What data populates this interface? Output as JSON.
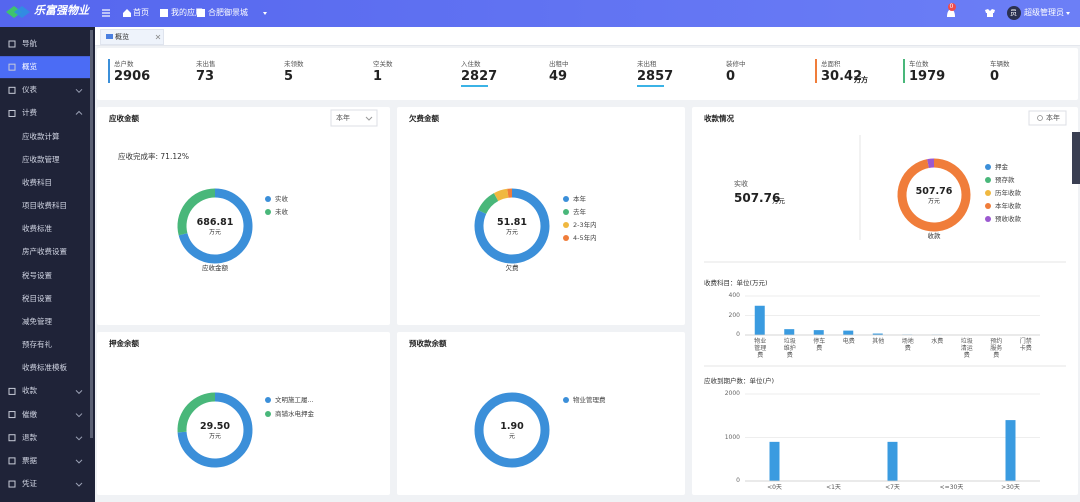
{
  "header": {
    "logo": "乐富强物业",
    "nav": [
      "首页",
      "我的应用",
      "合肥御景城"
    ],
    "badge": "0",
    "avatar": "员",
    "user": "超级管理员"
  },
  "sidebar": {
    "active": 1,
    "items": [
      {
        "label": "导航"
      },
      {
        "label": "概览"
      },
      {
        "label": "仪表",
        "expandable": true
      },
      {
        "label": "计费",
        "expandable": true
      },
      {
        "label": "应收款计算",
        "sub": true
      },
      {
        "label": "应收款管理",
        "sub": true
      },
      {
        "label": "收费科目",
        "sub": true
      },
      {
        "label": "项目收费科目",
        "sub": true
      },
      {
        "label": "收费标准",
        "sub": true
      },
      {
        "label": "房产收费设置",
        "sub": true
      },
      {
        "label": "税号设置",
        "sub": true
      },
      {
        "label": "税目设置",
        "sub": true
      },
      {
        "label": "减免管理",
        "sub": true
      },
      {
        "label": "预存有礼",
        "sub": true
      },
      {
        "label": "收费标准模板",
        "sub": true
      },
      {
        "label": "收款",
        "expandable": true
      },
      {
        "label": "催缴",
        "expandable": true
      },
      {
        "label": "退款",
        "expandable": true
      },
      {
        "label": "票据",
        "expandable": true
      },
      {
        "label": "凭证",
        "expandable": true
      }
    ]
  },
  "tab": "概览",
  "stats": [
    {
      "label": "总户数",
      "value": 2906,
      "bar": "left",
      "color": "#3b8fd9"
    },
    {
      "label": "未出售",
      "value": 73
    },
    {
      "label": "未领数",
      "value": 5
    },
    {
      "label": "空关数",
      "value": 1
    },
    {
      "label": "入住数",
      "value": 2827,
      "bar": "under",
      "color": "#3bb3e6"
    },
    {
      "label": "出租中",
      "value": 49
    },
    {
      "label": "未出租",
      "value": 2857,
      "bar": "under",
      "color": "#3bb3e6"
    },
    {
      "label": "装修中",
      "value": 0
    },
    {
      "label": "总面积",
      "value": 30.42,
      "unit": "万方",
      "bar": "left",
      "color": "#f07d3a"
    },
    {
      "label": "车位数",
      "value": 1979,
      "bar": "left",
      "color": "#49b77a"
    },
    {
      "label": "车辆数",
      "value": 0
    }
  ],
  "panels": {
    "receivable": {
      "title": "应收金额",
      "select": "本年",
      "rate": "应收完成率: 71.12%",
      "chart": {
        "type": "donut",
        "center": "686.81",
        "unit": "万元",
        "caption": "应收金额",
        "series": [
          {
            "name": "实收",
            "color": "#3b8fd9",
            "value": 71
          },
          {
            "name": "未收",
            "color": "#49b77a",
            "value": 29
          }
        ]
      }
    },
    "arrears": {
      "title": "欠费金额",
      "chart": {
        "type": "donut",
        "center": "51.81",
        "unit": "万元",
        "caption": "欠费",
        "series": [
          {
            "name": "本年",
            "color": "#3b8fd9",
            "value": 82
          },
          {
            "name": "去年",
            "color": "#49b77a",
            "value": 10
          },
          {
            "name": "2-3年内",
            "color": "#f0b840",
            "value": 6
          },
          {
            "name": "4-5年内",
            "color": "#f07d3a",
            "value": 2
          }
        ]
      }
    },
    "collection": {
      "title": "收款情况",
      "button": "本年",
      "label": "实收",
      "amount": "507.76",
      "amount_unit": "万元",
      "chart": {
        "type": "donut",
        "center": "507.76",
        "unit": "万元",
        "caption": "收款",
        "series": [
          {
            "name": "押金",
            "color": "#3b8fd9",
            "value": 0
          },
          {
            "name": "预存款",
            "color": "#49b77a",
            "value": 0
          },
          {
            "name": "历年收款",
            "color": "#f0b840",
            "value": 0
          },
          {
            "name": "本年收款",
            "color": "#f07d3a",
            "value": 97
          },
          {
            "name": "预收收款",
            "color": "#9b59d0",
            "value": 3
          }
        ]
      },
      "items": {
        "type": "bar",
        "title": "收费科目：单位(万元)",
        "categories": [
          "物业管理费",
          "垃圾维护费",
          "停车费",
          "电费",
          "其他",
          "场地费",
          "水费",
          "垃圾清运费",
          "预约服务费",
          "门禁卡费"
        ],
        "values": [
          300,
          60,
          50,
          45,
          15,
          5,
          3,
          0,
          0,
          0
        ],
        "color": "#3a9be0",
        "ylim": [
          0,
          400
        ],
        "yticks": [
          0,
          200,
          400
        ],
        "grid": true
      },
      "due": {
        "type": "bar",
        "title": "应收到期户数：单位(户)",
        "categories": [
          "<0天",
          "<1天",
          "<7天",
          "<=30天",
          ">30天"
        ],
        "values": [
          900,
          0,
          900,
          0,
          1400
        ],
        "color": "#3a9be0",
        "ylim": [
          0,
          2000
        ],
        "yticks": [
          0,
          1000,
          2000
        ],
        "grid": true
      }
    },
    "deposit": {
      "title": "押金余额",
      "chart": {
        "type": "donut",
        "center": "29.50",
        "unit": "万元",
        "series": [
          {
            "name": "文明施工履...",
            "color": "#3b8fd9",
            "value": 74
          },
          {
            "name": "商铺水电押金",
            "color": "#49b77a",
            "value": 26
          }
        ]
      }
    },
    "prepaid": {
      "title": "预收款余额",
      "chart": {
        "type": "donut",
        "center": "1.90",
        "unit": "元",
        "series": [
          {
            "name": "物业管理费",
            "color": "#3b8fd9",
            "value": 100
          }
        ]
      }
    }
  }
}
